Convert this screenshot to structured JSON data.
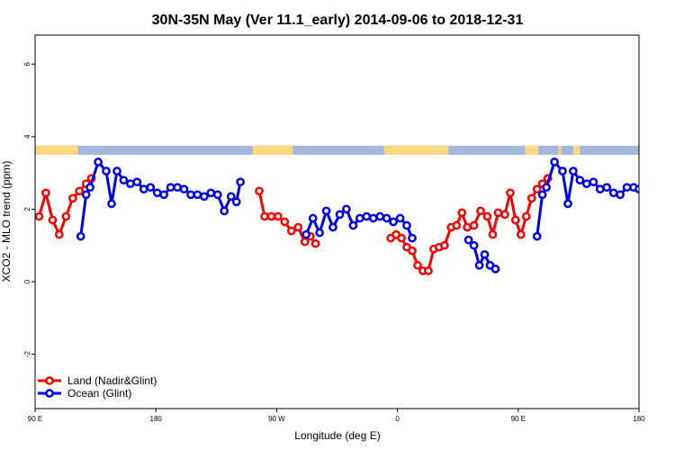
{
  "chart_data": {
    "type": "line",
    "title": "30N-35N May (Ver 11.1_early)   2014-09-06 to 2018-12-31",
    "xlabel": "Longitude (deg E)",
    "ylabel": "XCO2 - MLO trend (ppm)",
    "xlim": [
      90,
      540
    ],
    "ylim": [
      -3.5,
      6.8
    ],
    "x_ticks": [
      {
        "value": 90,
        "label": "90 E"
      },
      {
        "value": 180,
        "label": "180"
      },
      {
        "value": 270,
        "label": "90 W"
      },
      {
        "value": 360,
        "label": "0"
      },
      {
        "value": 450,
        "label": "90 E"
      },
      {
        "value": 540,
        "label": "180"
      }
    ],
    "y_ticks": [
      {
        "value": -2,
        "label": "-2"
      },
      {
        "value": 0,
        "label": "0"
      },
      {
        "value": 2,
        "label": "2"
      },
      {
        "value": 4,
        "label": "4"
      },
      {
        "value": 6,
        "label": "6"
      }
    ],
    "land_mask": {
      "y_range": [
        3.5,
        3.75
      ],
      "land_color": "#fcd77f",
      "ocean_color": "#a4b7dc",
      "land_intervals": [
        [
          90,
          122
        ],
        [
          252,
          282
        ],
        [
          350,
          398
        ],
        [
          455,
          465
        ],
        [
          480,
          482
        ],
        [
          491,
          496
        ]
      ]
    },
    "legend": {
      "placement": "bottom-left",
      "entries": [
        {
          "label": "Land (Nadir&Glint)",
          "color": "#ff0000"
        },
        {
          "label": "Ocean (Glint)",
          "color": "#0000ee"
        }
      ]
    },
    "series": [
      {
        "name": "Land (Nadir&Glint)",
        "color": "#ff0000",
        "segments": [
          [
            [
              93,
              1.8
            ],
            [
              98,
              2.45
            ],
            [
              103,
              1.7
            ],
            [
              108,
              1.3
            ],
            [
              113,
              1.8
            ],
            [
              118,
              2.3
            ],
            [
              123,
              2.5
            ],
            [
              128,
              2.7
            ],
            [
              132,
              2.85
            ]
          ],
          [
            [
              257,
              2.5
            ],
            [
              261,
              1.8
            ],
            [
              266,
              1.8
            ],
            [
              271,
              1.8
            ],
            [
              276,
              1.65
            ],
            [
              281,
              1.4
            ],
            [
              286,
              1.5
            ],
            [
              291,
              1.1
            ],
            [
              295,
              1.25
            ],
            [
              299,
              1.05
            ]
          ],
          [
            [
              355,
              1.2
            ],
            [
              359,
              1.3
            ],
            [
              363,
              1.2
            ],
            [
              367,
              0.95
            ],
            [
              371,
              0.85
            ],
            [
              375,
              0.45
            ],
            [
              379,
              0.3
            ],
            [
              383,
              0.3
            ],
            [
              387,
              0.9
            ],
            [
              391,
              0.95
            ],
            [
              395,
              1.0
            ],
            [
              400,
              1.5
            ],
            [
              404,
              1.55
            ],
            [
              408,
              1.9
            ],
            [
              412,
              1.5
            ],
            [
              417,
              1.55
            ],
            [
              422,
              1.95
            ],
            [
              427,
              1.8
            ],
            [
              431,
              1.3
            ],
            [
              435,
              1.9
            ],
            [
              440,
              1.85
            ],
            [
              444,
              2.45
            ],
            [
              448,
              1.7
            ],
            [
              452,
              1.3
            ],
            [
              456,
              1.8
            ],
            [
              460,
              2.3
            ],
            [
              464,
              2.55
            ],
            [
              468,
              2.7
            ],
            [
              472,
              2.85
            ]
          ]
        ]
      },
      {
        "name": "Ocean (Glint)",
        "color": "#0000ee",
        "segments": [
          [
            [
              124,
              1.25
            ],
            [
              128,
              2.4
            ],
            [
              131,
              2.6
            ],
            [
              137,
              3.3
            ],
            [
              143,
              3.05
            ],
            [
              147,
              2.15
            ],
            [
              151,
              3.05
            ],
            [
              156,
              2.8
            ],
            [
              161,
              2.7
            ],
            [
              166,
              2.75
            ],
            [
              171,
              2.55
            ],
            [
              176,
              2.6
            ],
            [
              181,
              2.45
            ],
            [
              186,
              2.4
            ],
            [
              191,
              2.6
            ],
            [
              196,
              2.6
            ],
            [
              201,
              2.55
            ],
            [
              206,
              2.4
            ],
            [
              211,
              2.4
            ],
            [
              216,
              2.35
            ],
            [
              221,
              2.45
            ],
            [
              226,
              2.4
            ],
            [
              231,
              1.95
            ],
            [
              236,
              2.35
            ],
            [
              240,
              2.2
            ],
            [
              243,
              2.75
            ]
          ],
          [
            [
              292,
              1.3
            ],
            [
              297,
              1.75
            ],
            [
              302,
              1.35
            ],
            [
              307,
              1.95
            ],
            [
              312,
              1.5
            ],
            [
              317,
              1.85
            ],
            [
              322,
              2.0
            ],
            [
              327,
              1.55
            ],
            [
              332,
              1.75
            ],
            [
              337,
              1.8
            ],
            [
              342,
              1.75
            ],
            [
              347,
              1.8
            ],
            [
              352,
              1.75
            ],
            [
              357,
              1.65
            ],
            [
              362,
              1.75
            ],
            [
              367,
              1.55
            ],
            [
              371,
              1.2
            ]
          ],
          [
            [
              413,
              1.15
            ],
            [
              417,
              1.0
            ],
            [
              421,
              0.45
            ],
            [
              425,
              0.75
            ],
            [
              429,
              0.45
            ],
            [
              433,
              0.35
            ]
          ],
          [
            [
              464,
              1.25
            ],
            [
              468,
              2.4
            ],
            [
              471,
              2.6
            ],
            [
              477,
              3.3
            ],
            [
              483,
              3.05
            ],
            [
              487,
              2.15
            ],
            [
              491,
              3.05
            ],
            [
              496,
              2.8
            ],
            [
              501,
              2.7
            ],
            [
              506,
              2.75
            ],
            [
              511,
              2.55
            ],
            [
              516,
              2.6
            ],
            [
              521,
              2.45
            ],
            [
              526,
              2.4
            ],
            [
              531,
              2.6
            ],
            [
              536,
              2.6
            ],
            [
              540,
              2.55
            ]
          ]
        ]
      }
    ]
  }
}
